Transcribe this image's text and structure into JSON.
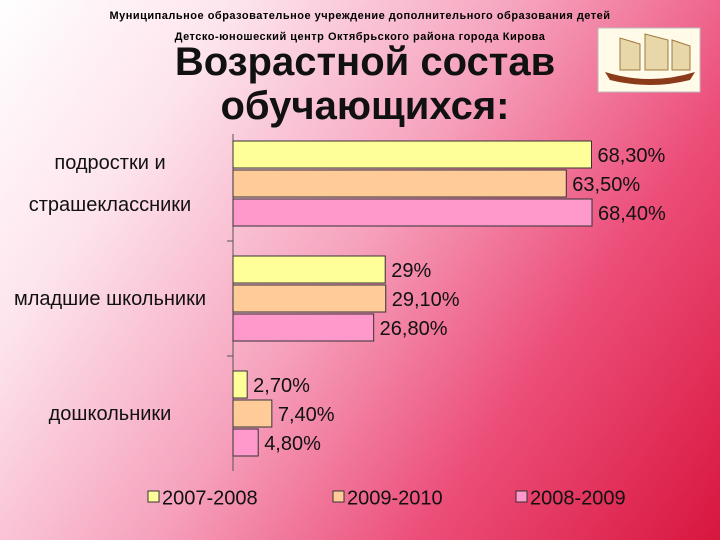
{
  "chart_data": {
    "type": "bar",
    "orientation": "horizontal",
    "header": [
      "Муниципальное образовательное учреждение дополнительного образования детей",
      "Детско-юношеский центр Октябрьского района города Кирова"
    ],
    "title": "Возрастной состав обучающихся:",
    "categories": [
      "подростки и страшеклассники",
      "младшие школьники",
      "дошкольники"
    ],
    "series": [
      {
        "name": "2007-2008",
        "color": "#ffff99",
        "values": [
          68.3,
          29,
          2.7
        ],
        "value_labels": [
          "68,30%",
          "29%",
          "2,70%"
        ]
      },
      {
        "name": "2009-2010",
        "color": "#ffcc99",
        "values": [
          63.5,
          29.1,
          7.4
        ],
        "value_labels": [
          "63,50%",
          "29,10%",
          "7,40%"
        ]
      },
      {
        "name": "2008-2009",
        "color": "#ff99cc",
        "values": [
          68.4,
          26.8,
          4.8
        ],
        "value_labels": [
          "68,40%",
          "26,80%",
          "4,80%"
        ]
      }
    ]
  }
}
